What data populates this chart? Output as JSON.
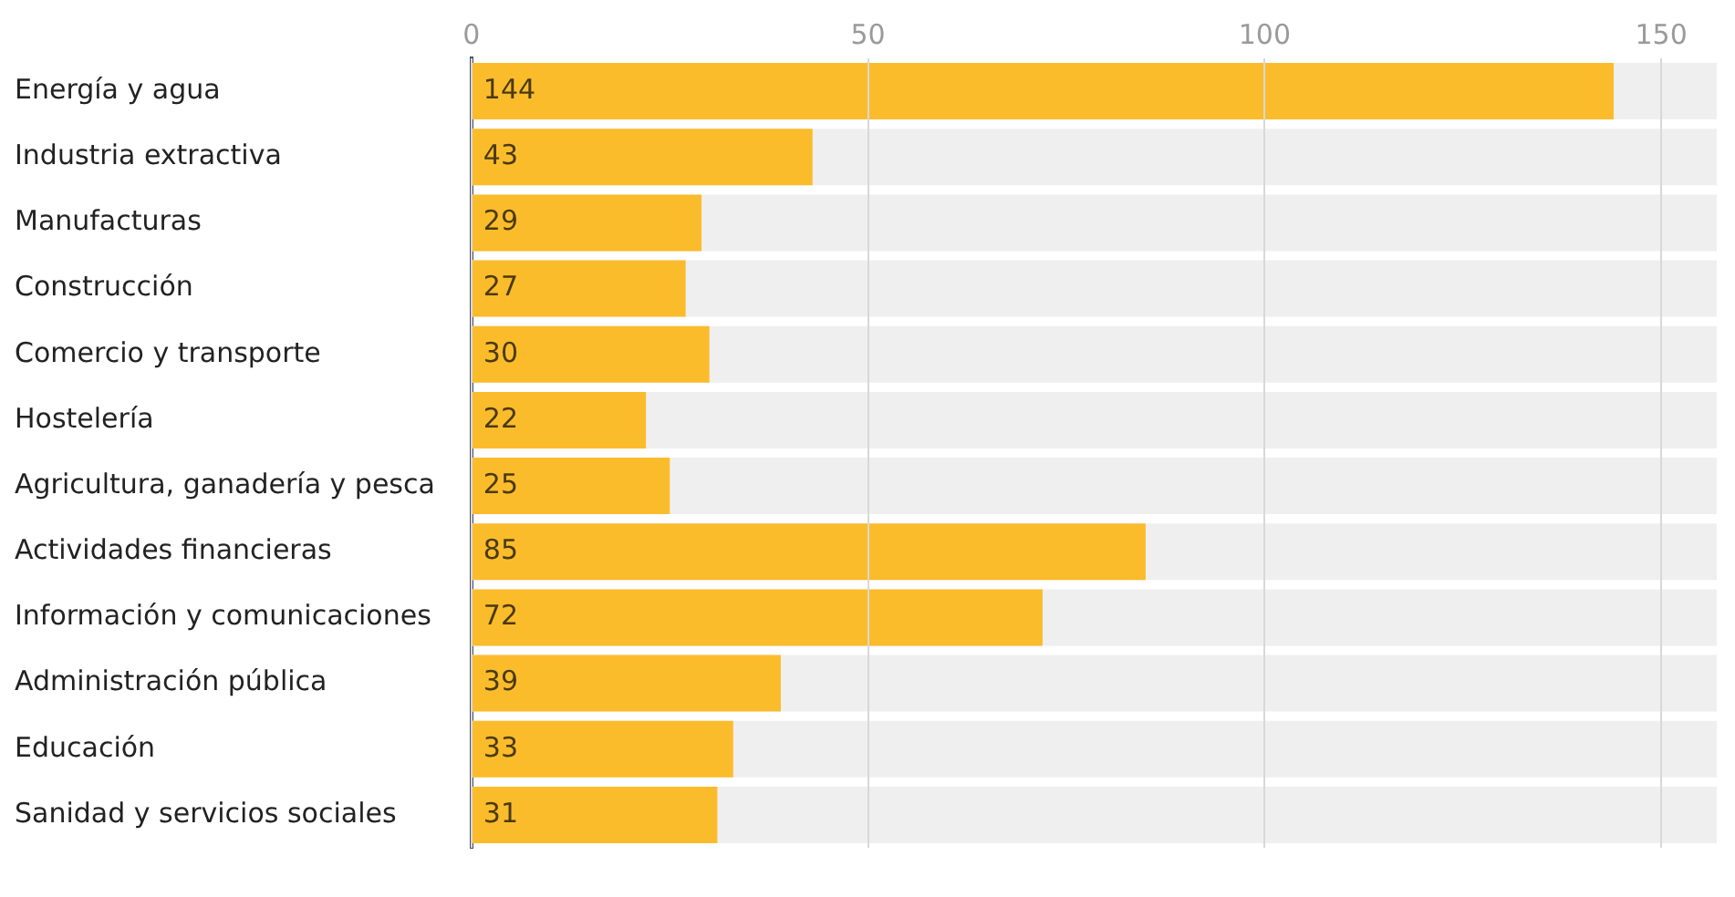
{
  "chart_data": {
    "type": "bar",
    "orientation": "horizontal",
    "categories": [
      "Energía y agua",
      "Industria extractiva",
      "Manufacturas",
      "Construcción",
      "Comercio y transporte",
      "Hostelería",
      "Agricultura, ganadería y pesca",
      "Actividades financieras",
      "Información y comunicaciones",
      "Administración pública",
      "Educación",
      "Sanidad y servicios sociales"
    ],
    "values": [
      144,
      43,
      29,
      27,
      30,
      22,
      25,
      85,
      72,
      39,
      33,
      31
    ],
    "color": "#fbbc2c",
    "xlim": [
      0,
      157
    ],
    "xticks": [
      0,
      50,
      100,
      150
    ],
    "grid": "x",
    "data_labels": true,
    "legend": false
  }
}
